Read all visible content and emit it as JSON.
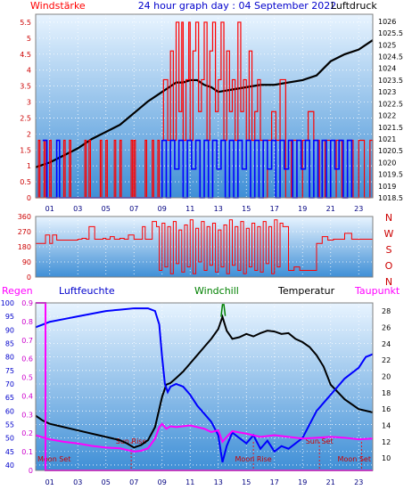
{
  "header": {
    "left_label": "Windstärke",
    "title": "24 hour graph day : 04 September 2022",
    "right_label": "Luftdruck"
  },
  "colors": {
    "wind_speed": "#ff0000",
    "gust": "#0000ff",
    "pressure": "#000000",
    "direction": "#ff0000",
    "humidity": "#0000ff",
    "temperature": "#000000",
    "dewpoint": "#ff00ff",
    "windchill": "#008000",
    "rain": "#ff00ff",
    "gradient_top": "#e8f4ff",
    "gradient_bottom": "#3f8fd6"
  },
  "chart_data": [
    {
      "type": "line",
      "id": "wind-pressure",
      "x_ticks": [
        "01",
        "03",
        "05",
        "07",
        "09",
        "11",
        "13",
        "15",
        "17",
        "19",
        "21",
        "23"
      ],
      "xlim": [
        0,
        24
      ],
      "y_left_ticks": [
        "0",
        "0.5",
        "1",
        "1.5",
        "2",
        "2.5",
        "3",
        "3.5",
        "4",
        "4.5",
        "5",
        "5.5"
      ],
      "ylim_left": [
        0,
        5.75
      ],
      "y_right_ticks": [
        "1018.5",
        "1019",
        "1019.5",
        "1020",
        "1020.5",
        "1021",
        "1021.5",
        "1022",
        "1022.5",
        "1023",
        "1023.5",
        "1024",
        "1024.5",
        "1025",
        "1025.5",
        "1026"
      ],
      "ylim_right": [
        1018.5,
        1026.3
      ],
      "series": [
        {
          "role": "pressure",
          "axis": "right",
          "x": [
            0,
            1,
            2,
            3,
            4,
            5,
            6,
            7,
            8,
            9,
            9.5,
            10,
            10.5,
            11,
            11.5,
            12,
            12.5,
            13,
            14,
            15,
            16,
            17,
            18,
            19,
            20,
            21,
            22,
            23,
            24
          ],
          "y": [
            1019.8,
            1020.0,
            1020.3,
            1020.6,
            1021.0,
            1021.3,
            1021.6,
            1022.1,
            1022.6,
            1023.0,
            1023.2,
            1023.4,
            1023.4,
            1023.5,
            1023.5,
            1023.3,
            1023.2,
            1023.0,
            1023.1,
            1023.2,
            1023.3,
            1023.3,
            1023.4,
            1023.5,
            1023.7,
            1024.3,
            1024.6,
            1024.8,
            1025.2
          ]
        },
        {
          "role": "wind_speed",
          "axis": "left",
          "x": [
            0,
            0.2,
            0.3,
            0.6,
            0.7,
            1.0,
            1.1,
            2.0,
            2.1,
            2.4,
            2.5,
            3.5,
            3.6,
            3.8,
            3.9,
            4.6,
            4.7,
            5.0,
            5.1,
            5.6,
            5.7,
            6.0,
            6.1,
            6.8,
            6.9,
            7.0,
            7.1,
            7.8,
            7.9,
            8.3,
            8.4,
            8.7,
            8.8,
            9.0,
            9.1,
            9.4,
            9.6,
            9.8,
            10.0,
            10.2,
            10.4,
            10.5,
            10.7,
            10.9,
            11.0,
            11.2,
            11.4,
            11.6,
            11.8,
            12.0,
            12.2,
            12.4,
            12.6,
            12.8,
            13.0,
            13.2,
            13.4,
            13.6,
            13.8,
            14.0,
            14.2,
            14.4,
            14.6,
            14.8,
            15.0,
            15.2,
            15.4,
            15.6,
            15.8,
            16.0,
            16.2,
            16.5,
            16.8,
            17.1,
            17.4,
            17.8,
            18.2,
            18.6,
            19.0,
            19.4,
            19.8,
            20.2,
            20.6,
            21.0,
            21.4,
            21.8,
            22.2,
            22.6,
            23.0,
            23.4,
            23.8,
            24.0
          ],
          "y": [
            0,
            1.8,
            0,
            1.8,
            0,
            1.8,
            0,
            1.8,
            0,
            1.8,
            0,
            1.8,
            0,
            1.8,
            0,
            1.8,
            0,
            1.8,
            0,
            1.8,
            0,
            1.8,
            0,
            1.8,
            0,
            1.8,
            0,
            1.8,
            0,
            1.8,
            0,
            1.8,
            0,
            1.8,
            3.7,
            1.8,
            4.6,
            1.8,
            5.5,
            2.7,
            5.5,
            1.8,
            3.7,
            5.5,
            1.8,
            4.6,
            5.5,
            2.7,
            3.7,
            5.5,
            1.8,
            4.6,
            5.5,
            2.7,
            3.7,
            5.5,
            1.8,
            4.6,
            2.7,
            3.7,
            1.8,
            5.5,
            2.7,
            3.7,
            1.8,
            4.6,
            1.8,
            2.7,
            3.7,
            1.8,
            0,
            1.8,
            2.7,
            1.8,
            3.7,
            0,
            1.8,
            0,
            1.8,
            2.7,
            1.8,
            0,
            1.8,
            0,
            1.8,
            0,
            1.8,
            0,
            1.8,
            0,
            1.8,
            0
          ]
        },
        {
          "role": "gust",
          "axis": "left",
          "x": [
            0.5,
            0.8,
            1.5,
            1.7,
            9.0,
            9.3,
            9.6,
            9.9,
            10.2,
            10.5,
            10.8,
            11.1,
            11.4,
            11.7,
            12.0,
            12.3,
            12.6,
            12.9,
            13.2,
            13.5,
            13.8,
            14.1,
            14.4,
            14.7,
            15.0,
            15.3,
            15.6,
            15.9,
            16.2,
            16.5,
            16.8,
            17.1,
            17.4,
            17.7,
            18.0,
            18.3,
            18.6,
            18.9,
            19.2,
            19.5,
            19.8,
            20.1,
            20.4,
            20.7,
            21.0,
            21.3,
            21.6,
            21.9,
            22.2,
            22.5
          ],
          "y": [
            1.8,
            0,
            1.8,
            0,
            1.8,
            0,
            1.8,
            0.9,
            1.8,
            0,
            1.8,
            0.9,
            1.8,
            0,
            1.8,
            0,
            1.8,
            0.9,
            1.8,
            0,
            1.8,
            0,
            1.8,
            0.9,
            1.8,
            0,
            1.8,
            0,
            1.8,
            0.9,
            1.8,
            0,
            1.8,
            0.9,
            1.8,
            0,
            1.8,
            0.9,
            1.8,
            0,
            1.8,
            0,
            1.8,
            0,
            1.8,
            0.9,
            1.8,
            0,
            1.8,
            0
          ]
        }
      ]
    },
    {
      "type": "line",
      "id": "wind-direction",
      "x_ticks": [
        "01",
        "03",
        "05",
        "07",
        "09",
        "11",
        "13",
        "15",
        "17",
        "19",
        "21",
        "23"
      ],
      "xlim": [
        0,
        24
      ],
      "y_left_ticks": [
        "0",
        "90",
        "180",
        "270",
        "360"
      ],
      "ylim_left": [
        0,
        360
      ],
      "y_right_letters": [
        "N",
        "W",
        "S",
        "O",
        "N"
      ],
      "series": [
        {
          "role": "direction",
          "x": [
            0,
            0.5,
            0.7,
            1.0,
            1.2,
            1.5,
            2.0,
            2.5,
            3.0,
            3.3,
            3.6,
            3.8,
            4.2,
            4.8,
            5.0,
            5.3,
            5.6,
            6.0,
            6.3,
            6.6,
            7.0,
            7.3,
            7.6,
            7.8,
            8.0,
            8.3,
            8.6,
            8.8,
            9.0,
            9.2,
            9.4,
            9.6,
            9.8,
            10.0,
            10.2,
            10.4,
            10.6,
            10.8,
            11.0,
            11.2,
            11.4,
            11.6,
            11.8,
            12.0,
            12.2,
            12.4,
            12.6,
            12.8,
            13.0,
            13.2,
            13.4,
            13.6,
            13.8,
            14.0,
            14.2,
            14.4,
            14.6,
            14.8,
            15.0,
            15.2,
            15.4,
            15.6,
            15.8,
            16.0,
            16.2,
            16.4,
            16.6,
            16.8,
            17.0,
            17.2,
            17.4,
            17.6,
            18.0,
            18.4,
            18.8,
            19.2,
            19.6,
            20.0,
            20.4,
            20.8,
            21.2,
            21.6,
            22.0,
            22.5,
            23.0,
            23.5,
            24.0
          ],
          "y": [
            200,
            200,
            250,
            200,
            250,
            220,
            220,
            220,
            225,
            230,
            225,
            300,
            225,
            230,
            225,
            240,
            225,
            230,
            225,
            250,
            225,
            225,
            300,
            225,
            225,
            330,
            300,
            40,
            320,
            60,
            300,
            20,
            330,
            80,
            280,
            30,
            310,
            60,
            340,
            20,
            290,
            90,
            330,
            40,
            300,
            70,
            320,
            30,
            280,
            60,
            310,
            20,
            340,
            70,
            300,
            40,
            330,
            20,
            290,
            60,
            320,
            40,
            300,
            30,
            330,
            80,
            300,
            20,
            340,
            60,
            320,
            300,
            40,
            60,
            40,
            40,
            40,
            200,
            240,
            220,
            225,
            225,
            260,
            225,
            225,
            225,
            225
          ]
        }
      ]
    },
    {
      "type": "line",
      "id": "temp-humidity",
      "legend": [
        "Regen",
        "Luftfeuchte",
        "Windchill",
        "Temperatur",
        "Taupunkt"
      ],
      "x_ticks": [
        "01",
        "03",
        "05",
        "07",
        "09",
        "11",
        "13",
        "15",
        "17",
        "19",
        "21",
        "23"
      ],
      "xlim": [
        0,
        24
      ],
      "y_humidity_ticks": [
        "40",
        "45",
        "50",
        "55",
        "60",
        "65",
        "70",
        "75",
        "80",
        "85",
        "90",
        "95",
        "100"
      ],
      "ylim_humidity": [
        38,
        100
      ],
      "y_rain_ticks": [
        "0",
        "0.1",
        "0.2",
        "0.3",
        "0.4",
        "0.5",
        "0.6",
        "0.7",
        "0.8",
        "0.9"
      ],
      "ylim_rain": [
        0,
        0.9
      ],
      "y_temp_ticks": [
        "10",
        "12",
        "14",
        "16",
        "18",
        "20",
        "22",
        "24",
        "26",
        "28"
      ],
      "ylim_temp": [
        8.5,
        29
      ],
      "annotations": [
        {
          "x": 0.7,
          "text": "Moon Set"
        },
        {
          "x": 6.8,
          "text": "Sun Rise"
        },
        {
          "x": 15.5,
          "text": "Moon Rise"
        },
        {
          "x": 20.2,
          "text": "Sun Set"
        },
        {
          "x": 23.2,
          "text": "Moon Set"
        }
      ],
      "series": [
        {
          "role": "temperature",
          "axis": "temp",
          "x": [
            0,
            0.5,
            1,
            2,
            3,
            4,
            5,
            6,
            6.5,
            7,
            7.5,
            8,
            8.5,
            9,
            9.3,
            9.6,
            10,
            10.5,
            11,
            11.5,
            12,
            12.5,
            13,
            13.3,
            13.6,
            14,
            14.5,
            15,
            15.5,
            16,
            16.5,
            17,
            17.5,
            18,
            18.5,
            19,
            19.5,
            20,
            20.5,
            21,
            22,
            23,
            24
          ],
          "y": [
            15.2,
            14.6,
            14.2,
            13.8,
            13.4,
            13.0,
            12.6,
            12.2,
            11.8,
            11.3,
            11.6,
            12.2,
            13.8,
            17.5,
            19.0,
            19.2,
            19.8,
            20.6,
            21.6,
            22.6,
            23.6,
            24.6,
            25.8,
            27.3,
            25.6,
            24.6,
            24.8,
            25.2,
            24.9,
            25.3,
            25.6,
            25.5,
            25.2,
            25.3,
            24.6,
            24.2,
            23.6,
            22.6,
            21.2,
            19.0,
            17.2,
            16.0,
            15.6
          ]
        },
        {
          "role": "humidity",
          "axis": "humidity",
          "x": [
            0,
            0.5,
            1,
            2,
            3,
            4,
            5,
            6,
            7,
            8,
            8.5,
            8.8,
            9,
            9.2,
            9.4,
            9.6,
            10,
            10.5,
            11,
            11.5,
            12,
            12.5,
            13,
            13.3,
            13.6,
            14,
            14.5,
            15,
            15.5,
            16,
            16.5,
            17,
            17.5,
            18,
            18.5,
            19,
            19.5,
            20,
            20.5,
            21,
            21.5,
            22,
            22.5,
            23,
            23.5,
            24
          ],
          "y": [
            91,
            92,
            93,
            94,
            95,
            96,
            97,
            97.5,
            98,
            98,
            97,
            92,
            80,
            70,
            67,
            69,
            70,
            69,
            66,
            62,
            59,
            56,
            51,
            41,
            47,
            52,
            50,
            48,
            51,
            46,
            49,
            45,
            47,
            46,
            48,
            50,
            55,
            60,
            63,
            66,
            69,
            72,
            74,
            76,
            80,
            81
          ]
        },
        {
          "role": "dewpoint",
          "axis": "temp",
          "x": [
            0,
            1,
            2,
            3,
            4,
            5,
            6,
            6.5,
            7,
            7.5,
            8,
            8.5,
            8.8,
            9,
            9.3,
            9.6,
            10,
            11,
            12,
            12.5,
            13,
            13.3,
            13.6,
            14,
            15,
            16,
            17,
            18,
            19,
            20,
            21,
            22,
            23,
            24
          ],
          "y": [
            12.8,
            12.3,
            12.0,
            11.8,
            11.5,
            11.3,
            11.2,
            11.0,
            10.8,
            10.9,
            11.2,
            12.4,
            13.8,
            14.2,
            13.6,
            13.9,
            13.8,
            14.0,
            13.6,
            13.2,
            13.4,
            12.0,
            12.6,
            13.3,
            13.0,
            12.6,
            12.8,
            12.6,
            12.4,
            12.5,
            12.6,
            12.5,
            12.3,
            12.4
          ]
        },
        {
          "role": "windchill",
          "axis": "temp",
          "x": [
            13.2,
            13.3,
            13.4,
            13.5
          ],
          "y": [
            27.3,
            28.8,
            28.8,
            27.4
          ]
        },
        {
          "role": "rain",
          "axis": "rain",
          "x": [
            0,
            0.7,
            0.7,
            24
          ],
          "y": [
            0.9,
            0.9,
            0,
            0
          ]
        }
      ]
    }
  ]
}
